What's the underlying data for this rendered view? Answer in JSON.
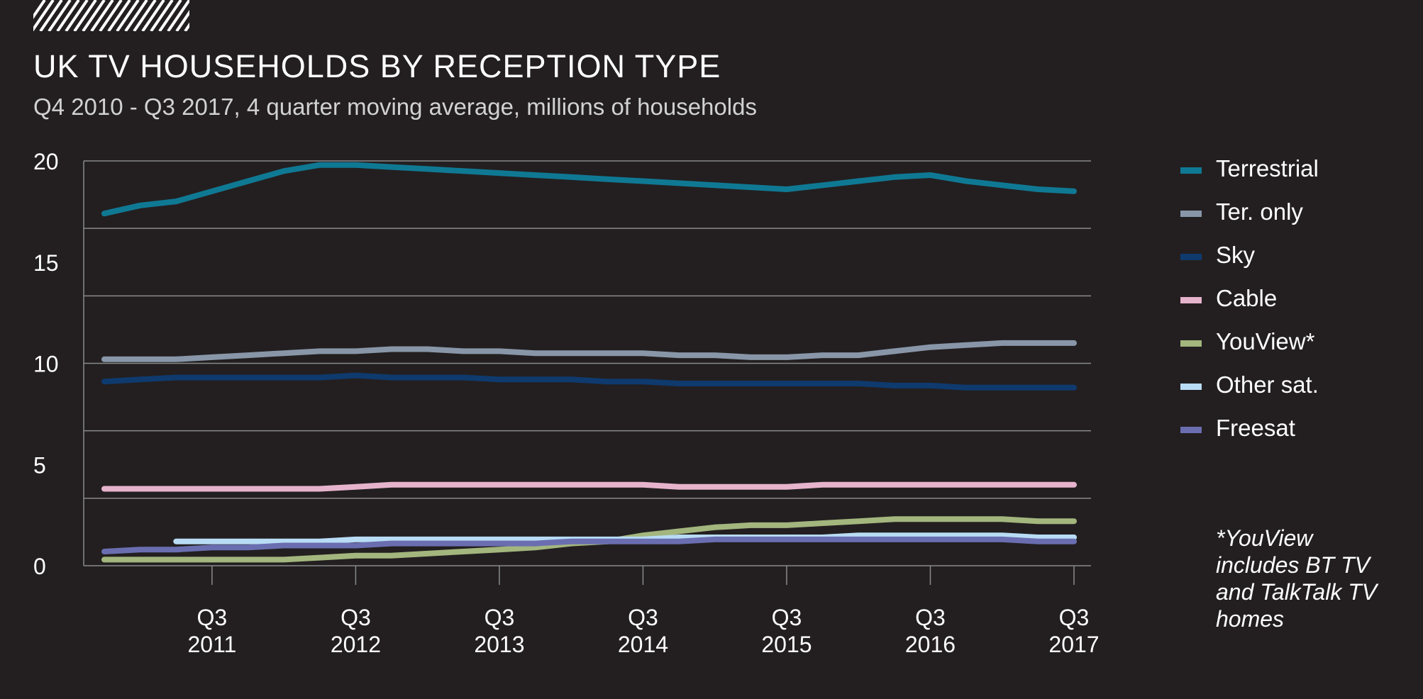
{
  "header": {
    "title": "UK TV HOUSEHOLDS BY RECEPTION TYPE",
    "subtitle": "Q4 2010 - Q3 2017, 4 quarter moving average, millions of households"
  },
  "footnote": "*YouView includes BT TV and TalkTalk TV homes",
  "colors": {
    "background": "#231f20",
    "gridline": "#8a8a8a"
  },
  "chart_data": {
    "type": "line",
    "title": "UK TV HOUSEHOLDS BY RECEPTION TYPE",
    "subtitle": "Q4 2010 - Q3 2017, 4 quarter moving average, millions of households",
    "x": [
      "Q4 2010",
      "Q1 2011",
      "Q2 2011",
      "Q3 2011",
      "Q4 2011",
      "Q1 2012",
      "Q2 2012",
      "Q3 2012",
      "Q4 2012",
      "Q1 2013",
      "Q2 2013",
      "Q3 2013",
      "Q4 2013",
      "Q1 2014",
      "Q2 2014",
      "Q3 2014",
      "Q4 2014",
      "Q1 2015",
      "Q2 2015",
      "Q3 2015",
      "Q4 2015",
      "Q1 2016",
      "Q2 2016",
      "Q3 2016",
      "Q4 2016",
      "Q1 2017",
      "Q2 2017",
      "Q3 2017"
    ],
    "x_ticks": [
      {
        "index": 3,
        "quarter": "Q3",
        "year": "2011"
      },
      {
        "index": 7,
        "quarter": "Q3",
        "year": "2012"
      },
      {
        "index": 11,
        "quarter": "Q3",
        "year": "2013"
      },
      {
        "index": 15,
        "quarter": "Q3",
        "year": "2014"
      },
      {
        "index": 19,
        "quarter": "Q3",
        "year": "2015"
      },
      {
        "index": 23,
        "quarter": "Q3",
        "year": "2016"
      },
      {
        "index": 27,
        "quarter": "Q3",
        "year": "2017"
      }
    ],
    "ylim": [
      0,
      20
    ],
    "y_ticks": [
      0,
      5,
      10,
      15,
      20
    ],
    "grid": true,
    "legend_position": "right",
    "series": [
      {
        "name": "Terrestrial",
        "color": "#0f7994",
        "values": [
          17.4,
          17.8,
          18.0,
          18.5,
          19.0,
          19.5,
          19.8,
          19.8,
          19.7,
          19.6,
          19.5,
          19.4,
          19.3,
          19.2,
          19.1,
          19.0,
          18.9,
          18.8,
          18.7,
          18.6,
          18.8,
          19.0,
          19.2,
          19.3,
          19.0,
          18.8,
          18.6,
          18.5
        ]
      },
      {
        "name": "Ter. only",
        "color": "#8896a8",
        "values": [
          10.2,
          10.2,
          10.2,
          10.3,
          10.4,
          10.5,
          10.6,
          10.6,
          10.7,
          10.7,
          10.6,
          10.6,
          10.5,
          10.5,
          10.5,
          10.5,
          10.4,
          10.4,
          10.3,
          10.3,
          10.4,
          10.4,
          10.6,
          10.8,
          10.9,
          11.0,
          11.0,
          11.0
        ]
      },
      {
        "name": "Sky",
        "color": "#0e3a6e",
        "values": [
          9.1,
          9.2,
          9.3,
          9.3,
          9.3,
          9.3,
          9.3,
          9.4,
          9.3,
          9.3,
          9.3,
          9.2,
          9.2,
          9.2,
          9.1,
          9.1,
          9.0,
          9.0,
          9.0,
          9.0,
          9.0,
          9.0,
          8.9,
          8.9,
          8.8,
          8.8,
          8.8,
          8.8
        ]
      },
      {
        "name": "Cable",
        "color": "#e6b3cc",
        "values": [
          3.8,
          3.8,
          3.8,
          3.8,
          3.8,
          3.8,
          3.8,
          3.9,
          4.0,
          4.0,
          4.0,
          4.0,
          4.0,
          4.0,
          4.0,
          4.0,
          3.9,
          3.9,
          3.9,
          3.9,
          4.0,
          4.0,
          4.0,
          4.0,
          4.0,
          4.0,
          4.0,
          4.0
        ]
      },
      {
        "name": "YouView*",
        "color": "#a3b67e",
        "values": [
          0.3,
          0.3,
          0.3,
          0.3,
          0.3,
          0.3,
          0.4,
          0.5,
          0.5,
          0.6,
          0.7,
          0.8,
          0.9,
          1.1,
          1.2,
          1.5,
          1.7,
          1.9,
          2.0,
          2.0,
          2.1,
          2.2,
          2.3,
          2.3,
          2.3,
          2.3,
          2.2,
          2.2
        ]
      },
      {
        "name": "Other sat.",
        "color": "#b9dcf5",
        "values": [
          null,
          null,
          1.2,
          1.2,
          1.2,
          1.2,
          1.2,
          1.3,
          1.3,
          1.3,
          1.3,
          1.3,
          1.3,
          1.3,
          1.3,
          1.3,
          1.4,
          1.4,
          1.4,
          1.4,
          1.4,
          1.5,
          1.5,
          1.5,
          1.5,
          1.5,
          1.4,
          1.4
        ]
      },
      {
        "name": "Freesat",
        "color": "#6a6eb0",
        "values": [
          0.7,
          0.8,
          0.8,
          0.9,
          0.9,
          1.0,
          1.0,
          1.0,
          1.1,
          1.1,
          1.1,
          1.1,
          1.1,
          1.2,
          1.2,
          1.2,
          1.2,
          1.3,
          1.3,
          1.3,
          1.3,
          1.3,
          1.3,
          1.3,
          1.3,
          1.3,
          1.2,
          1.2
        ]
      }
    ]
  }
}
